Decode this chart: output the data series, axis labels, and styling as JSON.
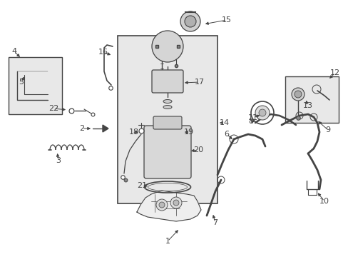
{
  "bg_color": "#ffffff",
  "line_color": "#444444",
  "box_fill": "#e8e8e8",
  "fig_width": 4.89,
  "fig_height": 3.6,
  "dpi": 100
}
